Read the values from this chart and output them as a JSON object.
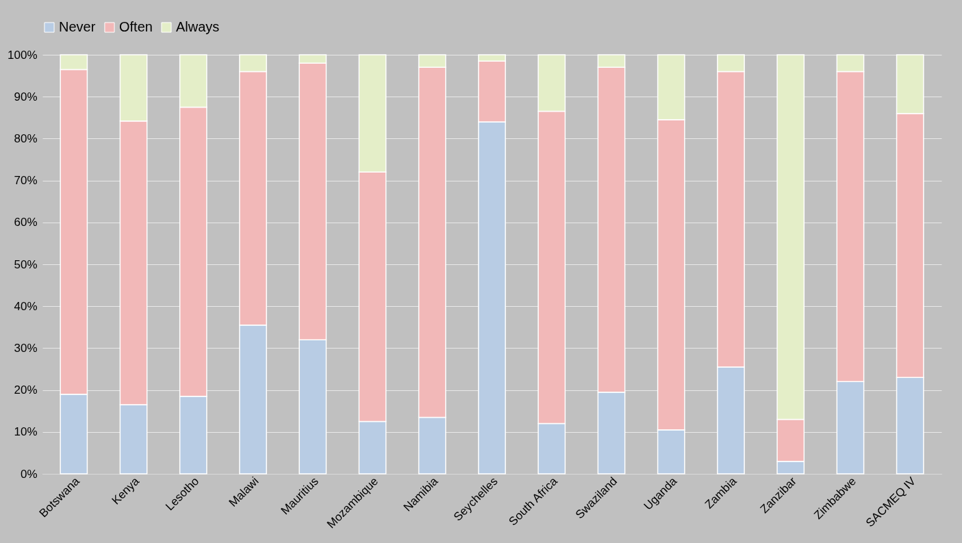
{
  "chart_data": {
    "type": "bar",
    "stacked": true,
    "categories": [
      "Botswana",
      "Kenya",
      "Lesotho",
      "Malawi",
      "Mauritius",
      "Mozambique",
      "Namibia",
      "Seychelles",
      "South Africa",
      "Swaziland",
      "Uganda",
      "Zambia",
      "Zanzibar",
      "Zimbabwe",
      "SACMEQ IV"
    ],
    "series": [
      {
        "name": "Never",
        "color": "#b8cce4",
        "values": [
          19,
          16.5,
          18.5,
          35.5,
          32,
          12.5,
          13.5,
          84,
          12,
          19.5,
          10.5,
          25.5,
          3,
          22,
          23
        ]
      },
      {
        "name": "Often",
        "color": "#f2b8b8",
        "values": [
          77.5,
          67.7,
          69,
          60.5,
          66,
          59.5,
          83.5,
          14.5,
          74.5,
          77.5,
          74,
          70.5,
          10,
          74,
          63
        ]
      },
      {
        "name": "Always",
        "color": "#e4eec8",
        "values": [
          3.5,
          15.8,
          12.5,
          4,
          2,
          28,
          3,
          1.5,
          13.5,
          3,
          15.5,
          4,
          87,
          4,
          14
        ]
      }
    ],
    "ylim": [
      0,
      100
    ],
    "yticks": [
      {
        "value": 0,
        "label": "0%"
      },
      {
        "value": 10,
        "label": "10%"
      },
      {
        "value": 20,
        "label": "20%"
      },
      {
        "value": 30,
        "label": "30%"
      },
      {
        "value": 40,
        "label": "40%"
      },
      {
        "value": 50,
        "label": "50%"
      },
      {
        "value": 60,
        "label": "60%"
      },
      {
        "value": 70,
        "label": "70%"
      },
      {
        "value": 80,
        "label": "80%"
      },
      {
        "value": 90,
        "label": "90%"
      },
      {
        "value": 100,
        "label": "100%"
      }
    ],
    "grid": true,
    "legend": "top"
  }
}
